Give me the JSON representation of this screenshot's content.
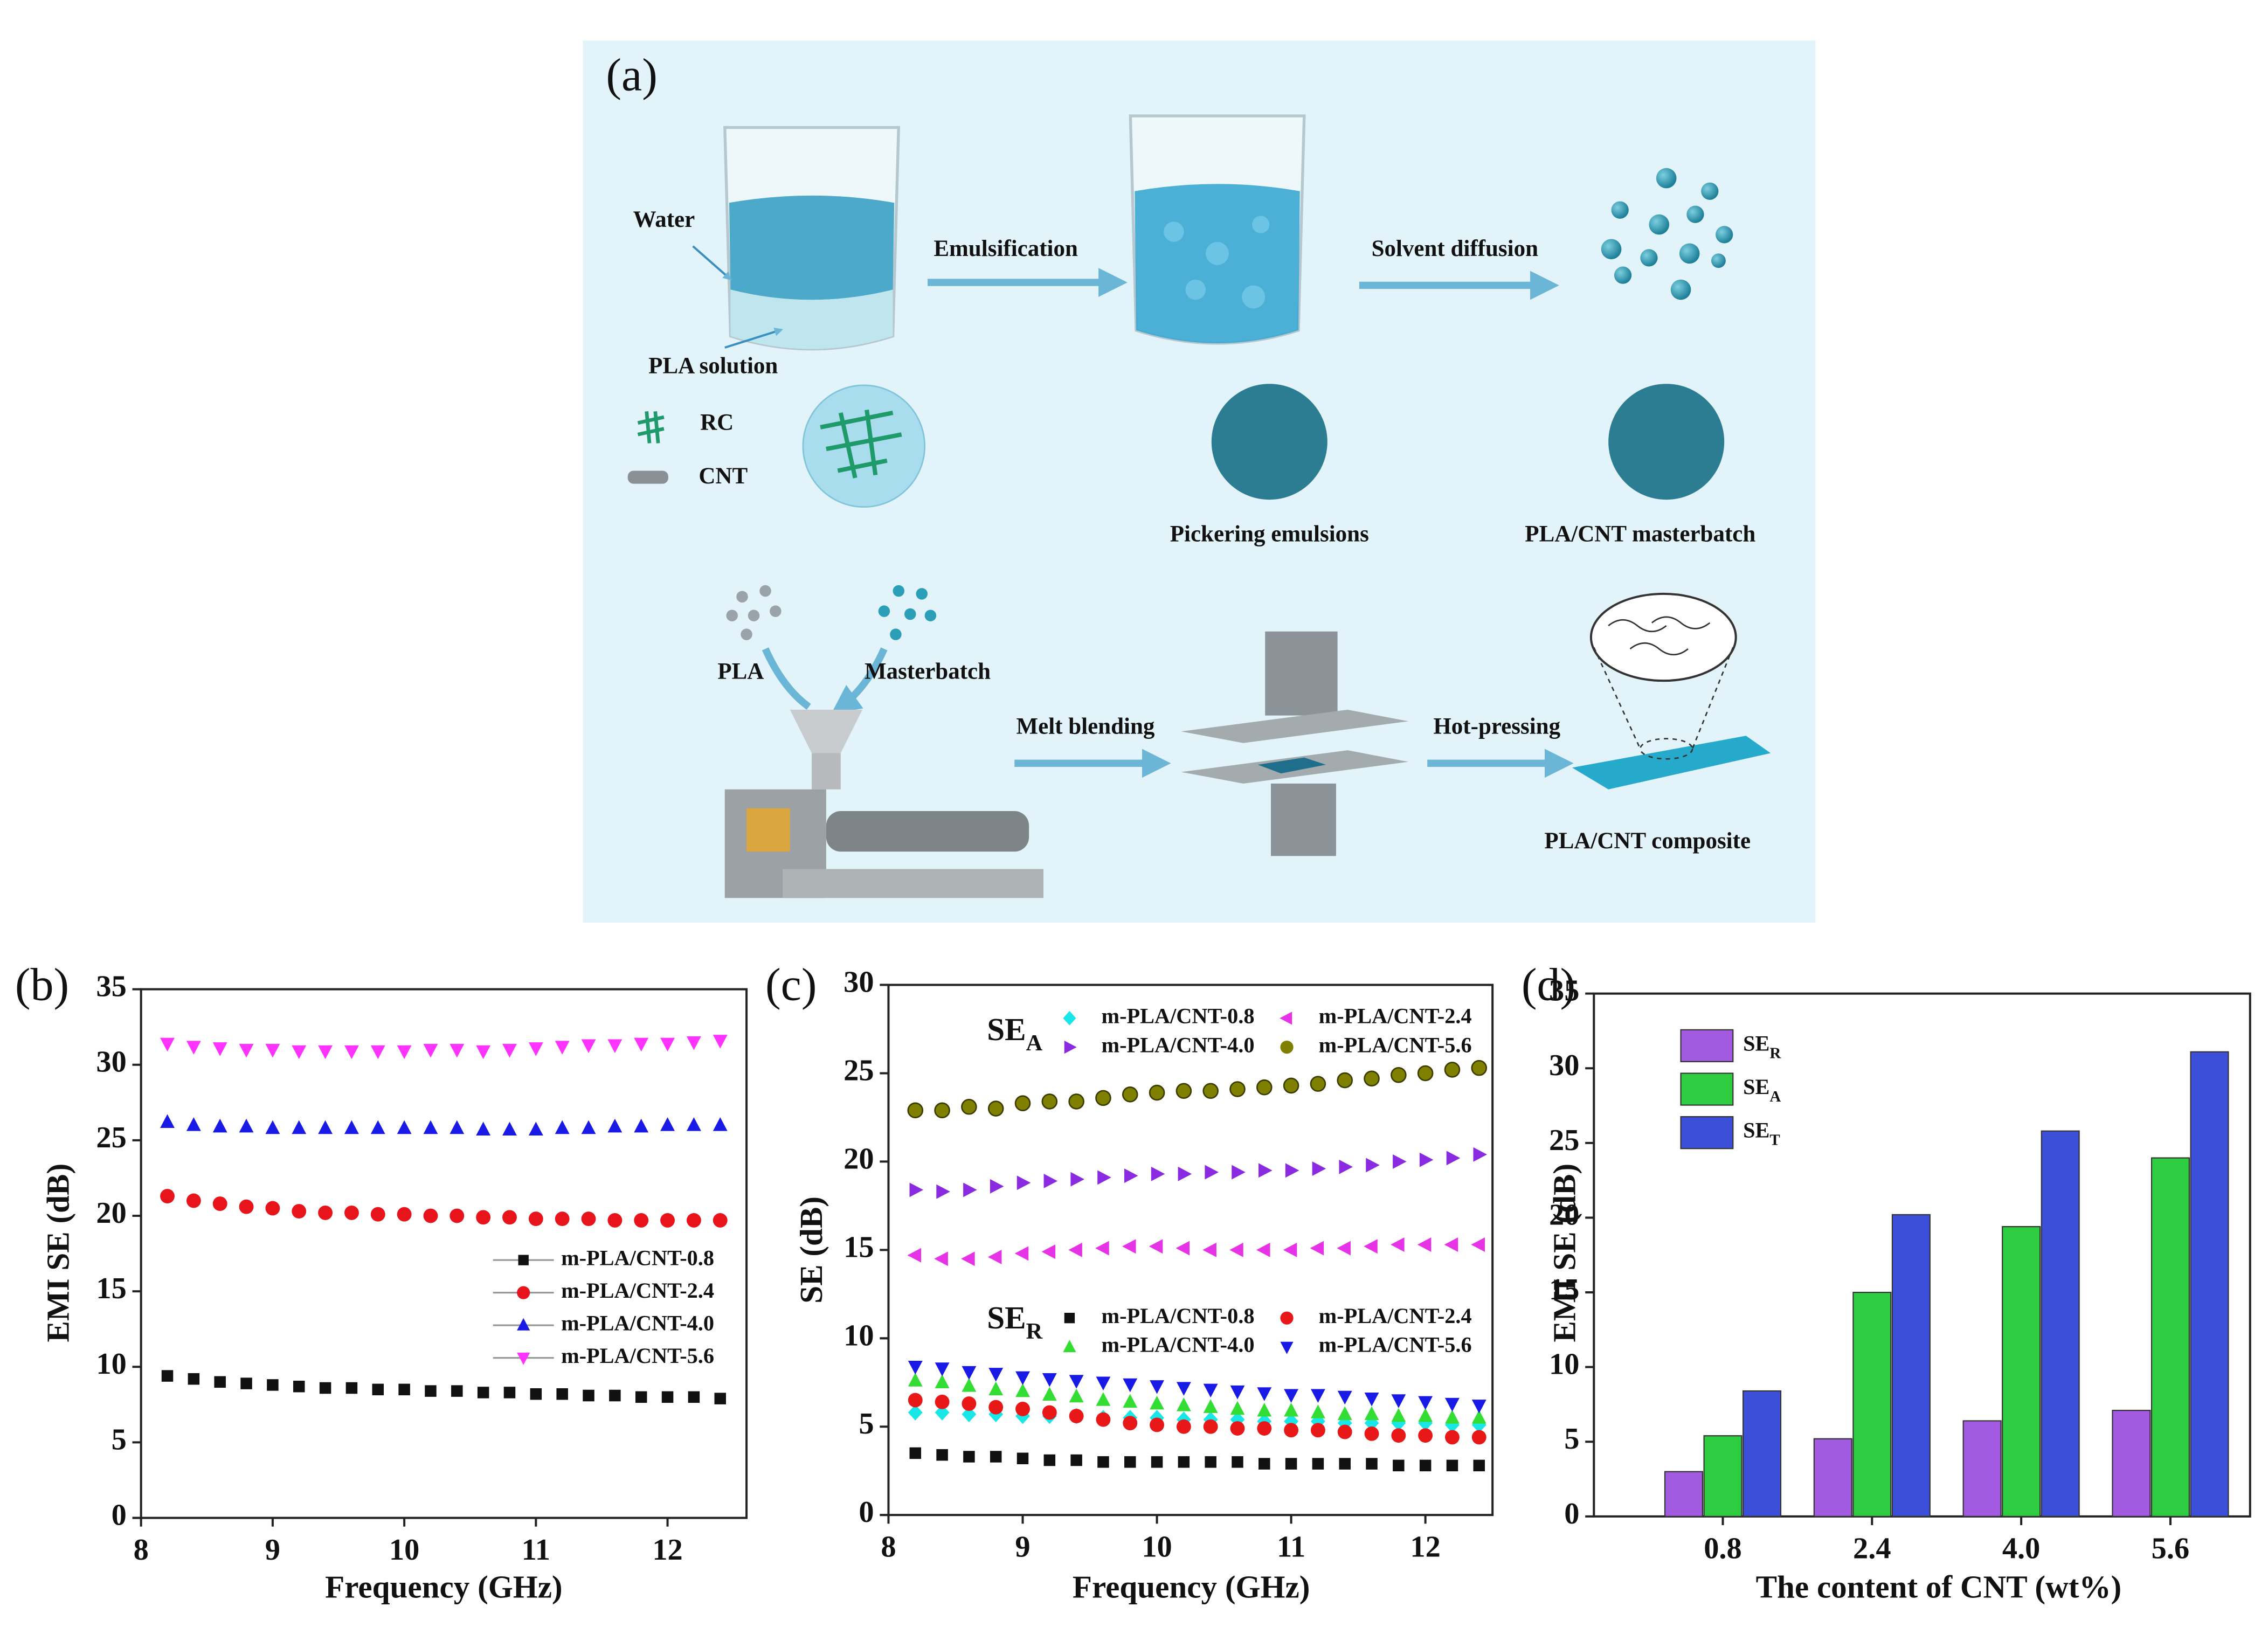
{
  "diagram": {
    "panel": "(a)",
    "water": "Water",
    "pla_solution": "PLA solution",
    "rc": "RC",
    "cnt": "CNT",
    "emulsification": "Emulsification",
    "solvent_diffusion": "Solvent diffusion",
    "pickering": "Pickering emulsions",
    "masterbatch_product": "PLA/CNT masterbatch",
    "pla": "PLA",
    "masterbatch": "Masterbatch",
    "melt_blending": "Melt blending",
    "hot_pressing": "Hot-pressing",
    "composite": "PLA/CNT composite"
  },
  "chart_data": [
    {
      "type": "scatter",
      "panel": "(b)",
      "xlabel": "Frequency (GHz)",
      "ylabel": "EMI SE (dB)",
      "xlim": [
        8,
        12.6
      ],
      "xticks": [
        8,
        9,
        10,
        11,
        12
      ],
      "ylim": [
        0,
        35
      ],
      "yticks": [
        0,
        5,
        10,
        15,
        20,
        25,
        30,
        35
      ],
      "legend": "lower right",
      "x": [
        8.2,
        8.4,
        8.6,
        8.8,
        9,
        9.2,
        9.4,
        9.6,
        9.8,
        10,
        10.2,
        10.4,
        10.6,
        10.8,
        11,
        11.2,
        11.4,
        11.6,
        11.8,
        12,
        12.2,
        12.4
      ],
      "series": [
        {
          "name": "m-PLA/CNT-0.8",
          "color": "#111111",
          "marker": "square",
          "values": [
            9.4,
            9.2,
            9.0,
            8.9,
            8.8,
            8.7,
            8.6,
            8.6,
            8.5,
            8.5,
            8.4,
            8.4,
            8.3,
            8.3,
            8.2,
            8.2,
            8.1,
            8.1,
            8.0,
            8.0,
            8.0,
            7.9
          ]
        },
        {
          "name": "m-PLA/CNT-2.4",
          "color": "#e8141b",
          "marker": "circle",
          "values": [
            21.3,
            21.0,
            20.8,
            20.6,
            20.5,
            20.3,
            20.2,
            20.2,
            20.1,
            20.1,
            20.0,
            20.0,
            19.9,
            19.9,
            19.8,
            19.8,
            19.8,
            19.7,
            19.7,
            19.7,
            19.7,
            19.7
          ]
        },
        {
          "name": "m-PLA/CNT-4.0",
          "color": "#1a1ae6",
          "marker": "triangle-up",
          "values": [
            26.2,
            26.0,
            25.9,
            25.9,
            25.8,
            25.8,
            25.8,
            25.8,
            25.8,
            25.8,
            25.8,
            25.8,
            25.7,
            25.7,
            25.7,
            25.8,
            25.8,
            25.9,
            25.9,
            26.0,
            26.0,
            26.0
          ]
        },
        {
          "name": "m-PLA/CNT-5.6",
          "color": "#ff33ff",
          "marker": "triangle-down",
          "values": [
            31.4,
            31.2,
            31.1,
            31.0,
            31.0,
            30.9,
            30.9,
            30.9,
            30.9,
            30.9,
            31.0,
            31.0,
            30.9,
            31.0,
            31.1,
            31.2,
            31.3,
            31.3,
            31.4,
            31.4,
            31.5,
            31.6
          ]
        }
      ]
    },
    {
      "type": "scatter",
      "panel": "(c)",
      "xlabel": "Frequency (GHz)",
      "ylabel": "SE (dB)",
      "xlim": [
        8,
        12.5
      ],
      "xticks": [
        8,
        9,
        10,
        11,
        12
      ],
      "ylim": [
        0,
        30
      ],
      "yticks": [
        0,
        5,
        10,
        15,
        20,
        25,
        30
      ],
      "x": [
        8.2,
        8.4,
        8.6,
        8.8,
        9,
        9.2,
        9.4,
        9.6,
        9.8,
        10,
        10.2,
        10.4,
        10.6,
        10.8,
        11,
        11.2,
        11.4,
        11.6,
        11.8,
        12,
        12.2,
        12.4
      ],
      "groups": [
        {
          "title": "SE",
          "subscript": "A",
          "title_color": "#e8141b",
          "series": [
            {
              "name": "m-PLA/CNT-0.8",
              "color": "#19e6e6",
              "marker": "diamond",
              "values": [
                5.8,
                5.8,
                5.7,
                5.7,
                5.6,
                5.6,
                5.6,
                5.5,
                5.5,
                5.5,
                5.4,
                5.4,
                5.4,
                5.3,
                5.3,
                5.3,
                5.2,
                5.2,
                5.2,
                5.2,
                5.1,
                5.1
              ]
            },
            {
              "name": "m-PLA/CNT-2.4",
              "color": "#e633e6",
              "marker": "triangle-left",
              "values": [
                14.7,
                14.5,
                14.5,
                14.6,
                14.8,
                14.9,
                15.0,
                15.1,
                15.2,
                15.2,
                15.1,
                15.0,
                15.0,
                15.0,
                15.0,
                15.1,
                15.1,
                15.2,
                15.3,
                15.3,
                15.3,
                15.3
              ]
            },
            {
              "name": "m-PLA/CNT-4.0",
              "color": "#8a2be2",
              "marker": "triangle-right",
              "values": [
                18.4,
                18.3,
                18.4,
                18.6,
                18.8,
                18.9,
                19.0,
                19.1,
                19.2,
                19.3,
                19.3,
                19.4,
                19.4,
                19.5,
                19.5,
                19.6,
                19.7,
                19.8,
                20.0,
                20.1,
                20.2,
                20.4
              ]
            },
            {
              "name": "m-PLA/CNT-5.6",
              "color": "#808000",
              "marker": "circle",
              "values": [
                22.9,
                22.9,
                23.1,
                23.0,
                23.3,
                23.4,
                23.4,
                23.6,
                23.8,
                23.9,
                24.0,
                24.0,
                24.1,
                24.2,
                24.3,
                24.4,
                24.6,
                24.7,
                24.9,
                25.0,
                25.2,
                25.3
              ]
            }
          ]
        },
        {
          "title": "SE",
          "subscript": "R",
          "title_color": "#111111",
          "series": [
            {
              "name": "m-PLA/CNT-0.8",
              "color": "#111111",
              "marker": "square",
              "values": [
                3.5,
                3.4,
                3.3,
                3.3,
                3.2,
                3.1,
                3.1,
                3.0,
                3.0,
                3.0,
                3.0,
                3.0,
                3.0,
                2.9,
                2.9,
                2.9,
                2.9,
                2.9,
                2.8,
                2.8,
                2.8,
                2.8
              ]
            },
            {
              "name": "m-PLA/CNT-2.4",
              "color": "#e81818",
              "marker": "circle",
              "values": [
                6.5,
                6.4,
                6.3,
                6.1,
                6.0,
                5.8,
                5.6,
                5.4,
                5.2,
                5.1,
                5.0,
                5.0,
                4.9,
                4.9,
                4.8,
                4.8,
                4.7,
                4.6,
                4.5,
                4.5,
                4.4,
                4.4
              ]
            },
            {
              "name": "m-PLA/CNT-4.0",
              "color": "#33dd33",
              "marker": "triangle-up",
              "values": [
                7.6,
                7.5,
                7.3,
                7.1,
                7.0,
                6.8,
                6.7,
                6.5,
                6.4,
                6.3,
                6.2,
                6.1,
                6.0,
                5.9,
                5.9,
                5.8,
                5.7,
                5.7,
                5.6,
                5.6,
                5.5,
                5.5
              ]
            },
            {
              "name": "m-PLA/CNT-5.6",
              "color": "#1a1ae6",
              "marker": "triangle-down",
              "values": [
                8.4,
                8.3,
                8.1,
                8.0,
                7.8,
                7.7,
                7.6,
                7.5,
                7.4,
                7.3,
                7.2,
                7.1,
                7.0,
                6.9,
                6.8,
                6.8,
                6.7,
                6.6,
                6.5,
                6.4,
                6.3,
                6.2
              ]
            }
          ]
        }
      ]
    },
    {
      "type": "bar",
      "panel": "(d)",
      "xlabel": "The content of CNT (wt%)",
      "ylabel": "EMI SE (dB)",
      "categories": [
        "0.8",
        "2.4",
        "4.0",
        "5.6"
      ],
      "ylim": [
        0,
        35
      ],
      "yticks": [
        0,
        5,
        10,
        15,
        20,
        25,
        30,
        35
      ],
      "legend": "upper left",
      "series": [
        {
          "name": "SE",
          "subscript": "R",
          "color": "#a25be0",
          "values": [
            3.0,
            5.2,
            6.4,
            7.1
          ]
        },
        {
          "name": "SE",
          "subscript": "A",
          "color": "#2ecc40",
          "values": [
            5.4,
            15.0,
            19.4,
            24.0
          ]
        },
        {
          "name": "SE",
          "subscript": "T",
          "color": "#3b4fd8",
          "values": [
            8.4,
            20.2,
            25.8,
            31.1
          ]
        }
      ]
    }
  ]
}
